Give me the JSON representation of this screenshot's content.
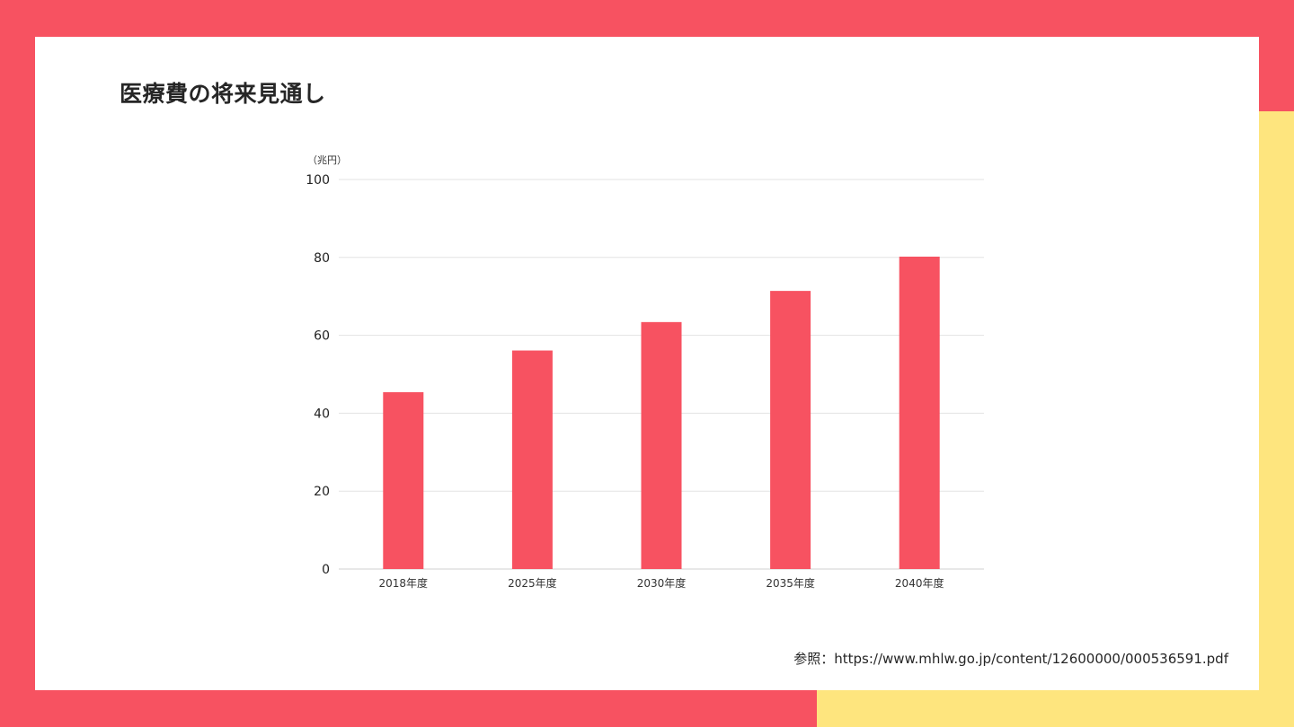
{
  "slide": {
    "title": "医療費の将来見通し",
    "source": "参照：https://www.mhlw.go.jp/content/12600000/000536591.pdf"
  },
  "colors": {
    "frame": "#f75261",
    "accent": "#fee57e",
    "bar": "#f75261"
  },
  "chart_data": {
    "type": "bar",
    "title": "",
    "unit_label": "（兆円）",
    "categories": [
      "2018年度",
      "2025年度",
      "2030年度",
      "2035年度",
      "2040年度"
    ],
    "values": [
      45.4,
      56.1,
      63.4,
      71.4,
      80.2
    ],
    "ylim": [
      0,
      100
    ],
    "yticks": [
      0,
      20,
      40,
      60,
      80,
      100
    ],
    "grid": true,
    "legend": "none"
  }
}
